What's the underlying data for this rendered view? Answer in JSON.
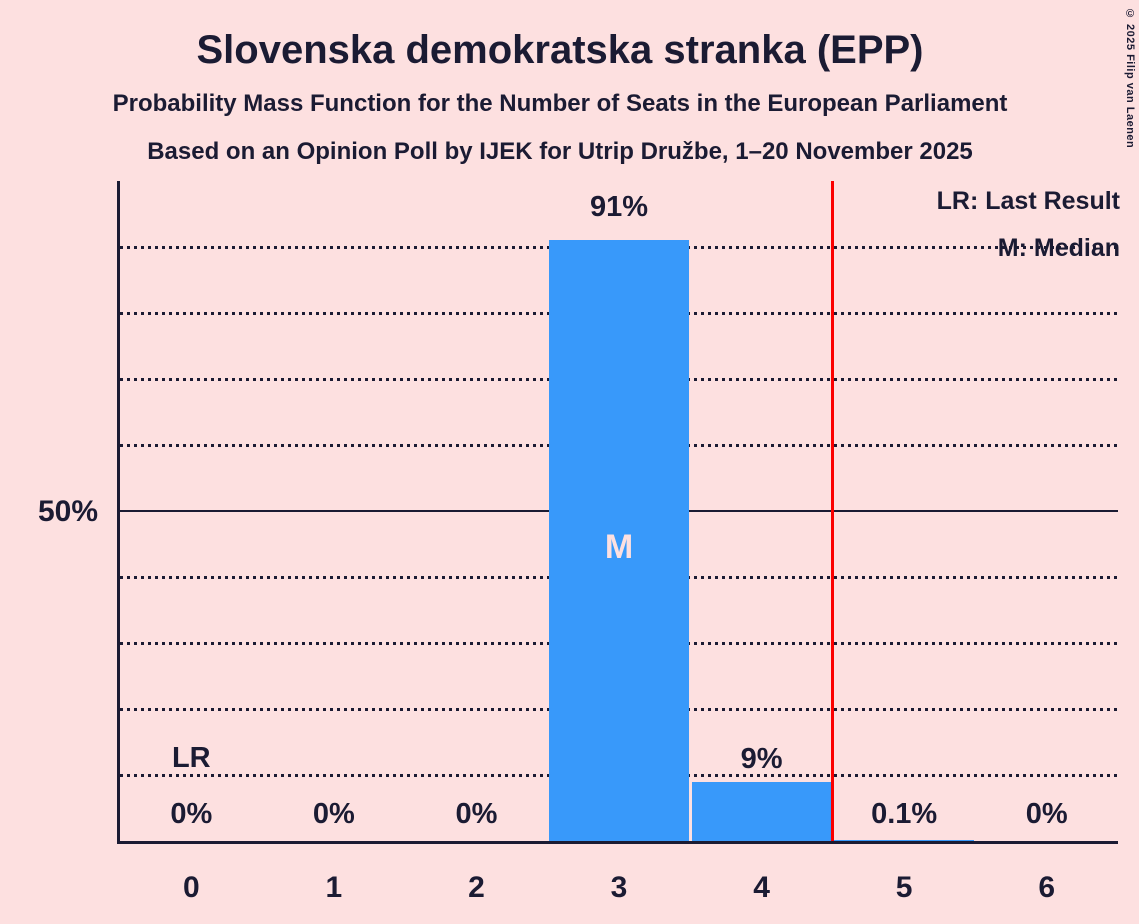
{
  "header": {
    "title": "Slovenska demokratska stranka (EPP)",
    "subtitle": "Probability Mass Function for the Number of Seats in the European Parliament",
    "poll_line": "Based on an Opinion Poll by IJEK for Utrip Družbe, 1–20 November 2025"
  },
  "copyright": "© 2025 Filip van Laenen",
  "legend": {
    "last_result": "LR: Last Result",
    "median": "M: Median"
  },
  "y_axis": {
    "label_50": "50%"
  },
  "markers": {
    "last_result": "LR",
    "median": "M"
  },
  "colors": {
    "background": "#fde0e0",
    "bar": "#3899fa",
    "text": "#1b1b33",
    "last_result_line": "#fb0000",
    "median_letter": "#fde0e0"
  },
  "chart_data": {
    "type": "bar",
    "title": "Probability Mass Function for the Number of Seats in the European Parliament",
    "categories": [
      "0",
      "1",
      "2",
      "3",
      "4",
      "5",
      "6"
    ],
    "values": [
      0,
      0,
      0,
      91,
      9,
      0.1,
      0
    ],
    "value_labels": [
      "0%",
      "0%",
      "0%",
      "91%",
      "9%",
      "0.1%",
      "0%"
    ],
    "ylim": [
      0,
      100
    ],
    "y_gridlines_pct": [
      10,
      20,
      30,
      40,
      60,
      70,
      80,
      90
    ],
    "solid_gridline_pct": 50,
    "median_category_index": 3,
    "last_result_marker_category_index": 0,
    "last_result_line_x": 4.5,
    "grid": "dotted horizontal lines every 10%",
    "legend_position": "top-right"
  }
}
